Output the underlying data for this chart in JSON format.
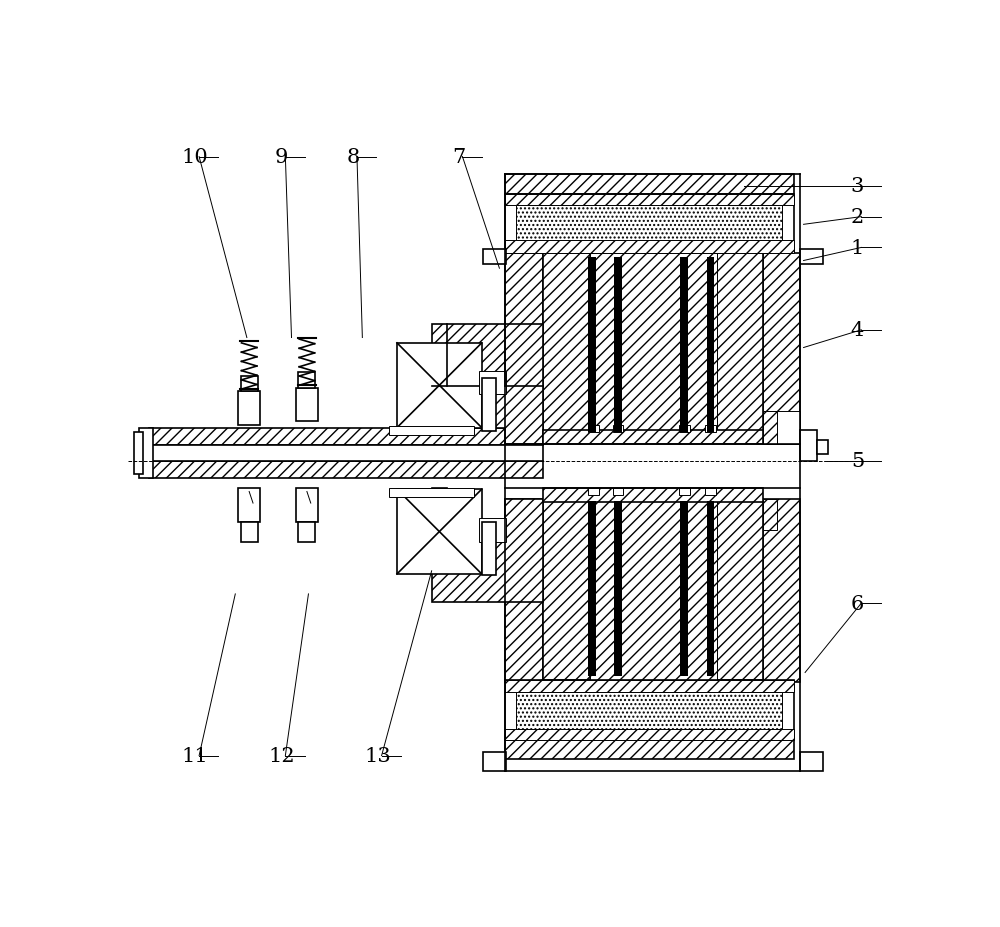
{
  "bg_color": "#ffffff",
  "line_color": "#000000",
  "leaders": {
    "1": [
      948,
      178,
      878,
      195
    ],
    "2": [
      948,
      138,
      878,
      148
    ],
    "3": [
      948,
      98,
      800,
      98
    ],
    "4": [
      948,
      285,
      878,
      308
    ],
    "5": [
      948,
      455,
      908,
      455
    ],
    "6": [
      948,
      640,
      880,
      730
    ],
    "7": [
      430,
      60,
      483,
      205
    ],
    "8": [
      293,
      60,
      305,
      295
    ],
    "9": [
      200,
      60,
      213,
      295
    ],
    "10": [
      88,
      60,
      155,
      295
    ],
    "11": [
      88,
      838,
      140,
      628
    ],
    "12": [
      200,
      838,
      235,
      628
    ],
    "13": [
      325,
      838,
      395,
      598
    ]
  }
}
